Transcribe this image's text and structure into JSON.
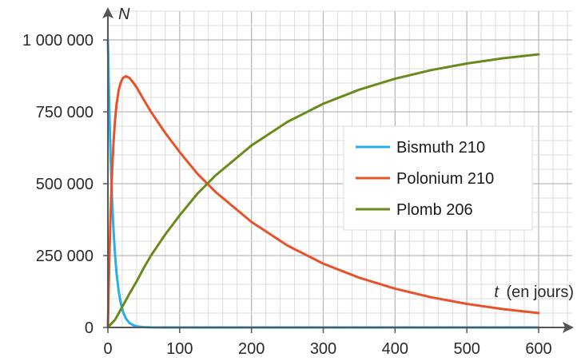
{
  "chart_data": {
    "type": "line",
    "xlabel_var": "t",
    "xlabel_unit": "(en jours)",
    "ylabel": "N",
    "xlim": [
      0,
      600
    ],
    "ylim": [
      0,
      1000000
    ],
    "x_ticks": [
      0,
      100,
      200,
      300,
      400,
      500,
      600
    ],
    "x_tick_labels": [
      "0",
      "100",
      "200",
      "300",
      "400",
      "500",
      "600"
    ],
    "y_ticks": [
      0,
      250000,
      500000,
      750000,
      1000000
    ],
    "y_tick_labels": [
      "0",
      "250 000",
      "500 000",
      "750 000",
      "1 000 000"
    ],
    "grid": true,
    "legend_position": "right",
    "series": [
      {
        "name": "Bismuth 210",
        "color": "#2aaee6",
        "x": [
          0,
          2,
          4,
          6,
          8,
          10,
          12,
          15,
          18,
          21,
          25,
          30,
          35,
          40,
          50,
          60,
          80,
          100,
          150,
          200,
          300,
          400,
          500,
          600
        ],
        "values": [
          1000000,
          758000,
          575000,
          436000,
          331000,
          251000,
          190000,
          126000,
          83000,
          55000,
          31000,
          16000,
          8000,
          4000,
          1000,
          300,
          0,
          0,
          0,
          0,
          0,
          0,
          0,
          0
        ]
      },
      {
        "name": "Polonium 210",
        "color": "#e8522a",
        "x": [
          0,
          2,
          4,
          6,
          8,
          10,
          12,
          15,
          18,
          21,
          25,
          30,
          35,
          40,
          50,
          60,
          80,
          100,
          125,
          150,
          200,
          250,
          300,
          350,
          400,
          450,
          500,
          550,
          600
        ],
        "values": [
          0,
          239000,
          416000,
          550000,
          650000,
          722000,
          775000,
          825000,
          853000,
          868000,
          874000,
          868000,
          853000,
          835000,
          792000,
          750000,
          676000,
          610000,
          534000,
          471000,
          367000,
          285000,
          222000,
          173000,
          135000,
          105000,
          82000,
          64000,
          50000
        ]
      },
      {
        "name": "Plomb 206",
        "color": "#6a8a1e",
        "x": [
          0,
          10,
          20,
          30,
          40,
          50,
          60,
          80,
          100,
          125,
          150,
          200,
          250,
          300,
          350,
          400,
          450,
          500,
          550,
          600
        ],
        "values": [
          0,
          27000,
          72000,
          117000,
          160000,
          207000,
          250000,
          324000,
          390000,
          466000,
          529000,
          633000,
          715000,
          778000,
          827000,
          865000,
          895000,
          918000,
          936000,
          950000
        ]
      }
    ]
  }
}
